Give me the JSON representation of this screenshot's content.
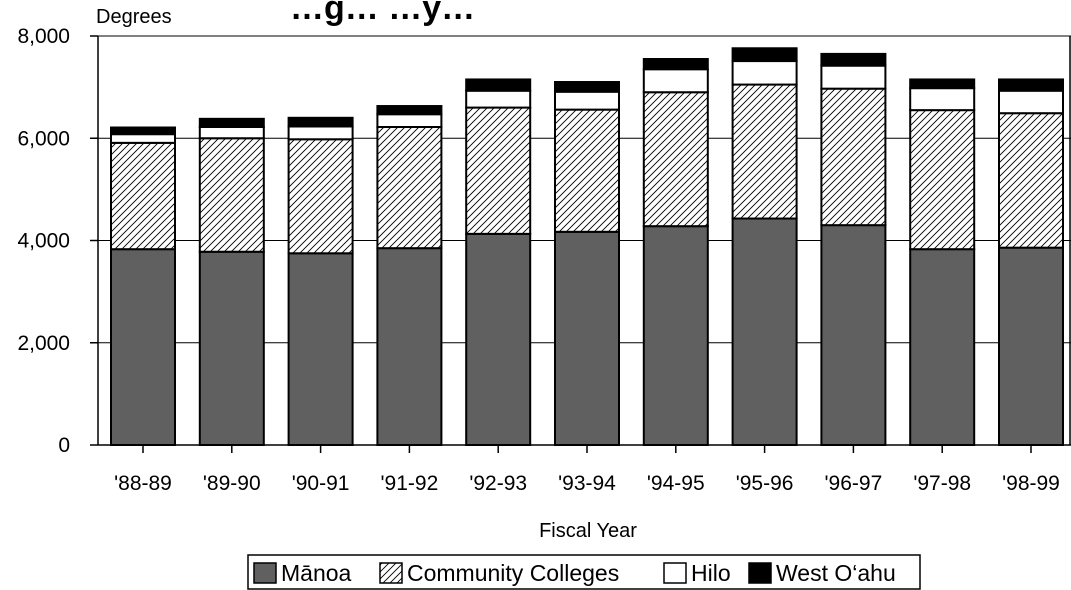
{
  "chart_data": {
    "type": "bar",
    "stacked": true,
    "title": "…g… …y…",
    "ylabel": "Degrees",
    "xlabel": "Fiscal Year",
    "ylim": [
      0,
      8000
    ],
    "yticks": [
      0,
      2000,
      4000,
      6000,
      8000
    ],
    "ytick_labels": [
      "0",
      "2,000",
      "4,000",
      "6,000",
      "8,000"
    ],
    "grid": "horizontal",
    "legend_position": "bottom",
    "categories": [
      "'88-89",
      "'89-90",
      "'90-91",
      "'91-92",
      "'92-93",
      "'93-94",
      "'94-95",
      "'95-96",
      "'96-97",
      "'97-98",
      "'98-99"
    ],
    "series": [
      {
        "name": "Mānoa",
        "pattern": "solid",
        "color": "#606060",
        "values": [
          3830,
          3780,
          3750,
          3850,
          4130,
          4170,
          4280,
          4430,
          4300,
          3830,
          3860
        ]
      },
      {
        "name": "Community Colleges",
        "pattern": "hatch",
        "color": "#ffffff",
        "values": [
          2080,
          2220,
          2230,
          2370,
          2470,
          2390,
          2620,
          2620,
          2670,
          2720,
          2630
        ]
      },
      {
        "name": "Hilo",
        "pattern": "solid",
        "color": "#ffffff",
        "values": [
          170,
          220,
          250,
          250,
          330,
          350,
          450,
          460,
          450,
          430,
          440
        ]
      },
      {
        "name": "West O‘ahu",
        "pattern": "solid",
        "color": "#000000",
        "values": [
          130,
          160,
          170,
          160,
          220,
          190,
          200,
          250,
          230,
          170,
          220
        ]
      }
    ]
  }
}
